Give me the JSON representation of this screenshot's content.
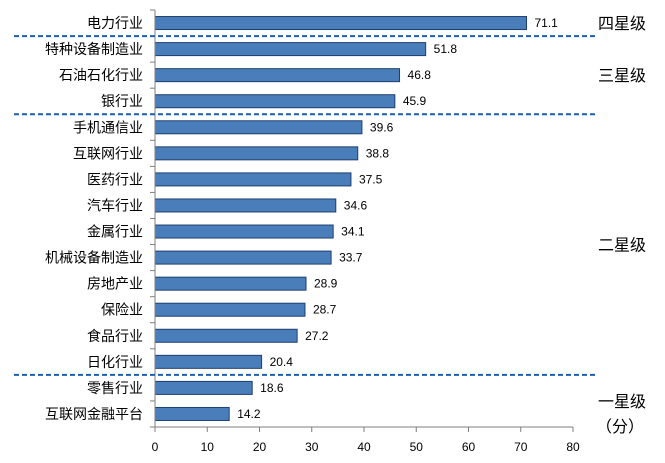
{
  "chart_data": {
    "type": "bar",
    "orientation": "horizontal",
    "categories": [
      "电力行业",
      "特种设备制造业",
      "石油石化行业",
      "银行业",
      "手机通信业",
      "互联网行业",
      "医药行业",
      "汽车行业",
      "金属行业",
      "机械设备制造业",
      "房地产业",
      "保险业",
      "食品行业",
      "日化行业",
      "零售行业",
      "互联网金融平台"
    ],
    "values": [
      71.1,
      51.8,
      46.8,
      45.9,
      39.6,
      38.8,
      37.5,
      34.6,
      34.1,
      33.7,
      28.9,
      28.7,
      27.2,
      20.4,
      18.6,
      14.2
    ],
    "value_labels": [
      "71.1",
      "51.8",
      "46.8",
      "45.9",
      "39.6",
      "38.8",
      "37.5",
      "34.6",
      "34.1",
      "33.7",
      "28.9",
      "28.7",
      "27.2",
      "20.4",
      "18.6",
      "14.2"
    ],
    "xlim": [
      0,
      80
    ],
    "xticks": [
      "0",
      "10",
      "20",
      "30",
      "40",
      "50",
      "60",
      "70",
      "80"
    ],
    "unit_label": "（分）",
    "bar_color": "#4a7ebb",
    "bar_edge_color": "#1f3f6e",
    "divider_color": "#1f5fa8",
    "grid": false,
    "tiers": [
      {
        "label": "四星级",
        "start_index": 0,
        "end_index": 0
      },
      {
        "label": "三星级",
        "start_index": 1,
        "end_index": 3
      },
      {
        "label": "二星级",
        "start_index": 4,
        "end_index": 13
      },
      {
        "label": "一星级",
        "start_index": 14,
        "end_index": 15
      }
    ]
  }
}
